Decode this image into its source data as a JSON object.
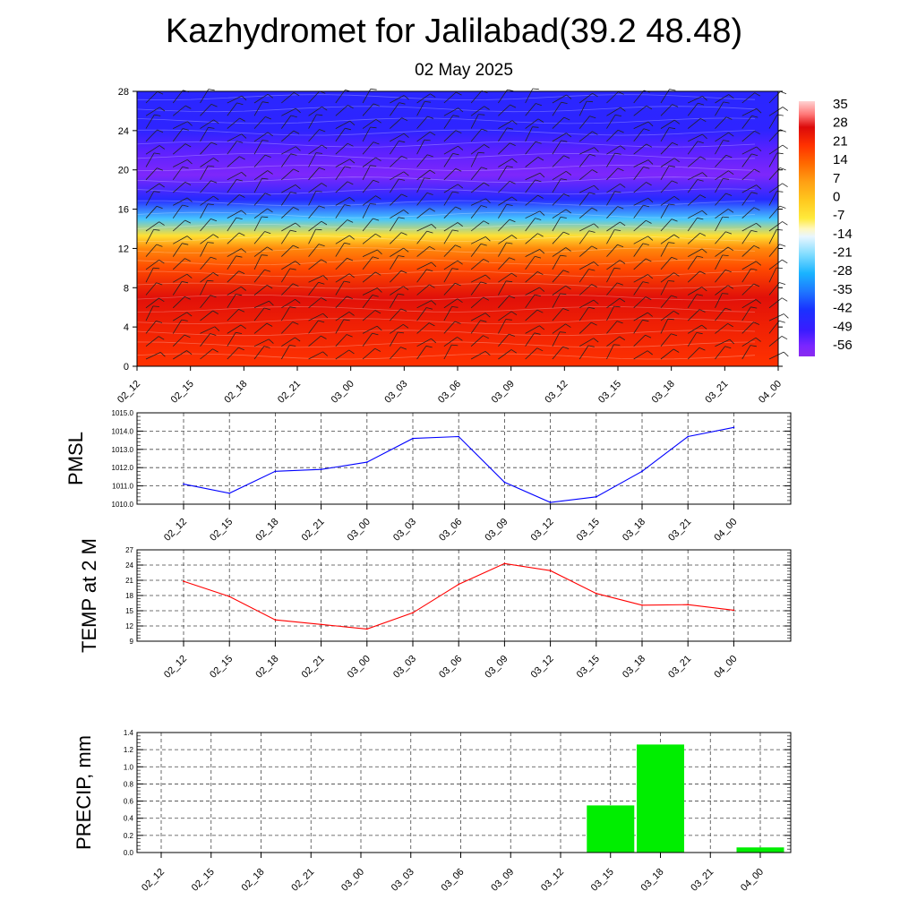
{
  "title": "Kazhydromet for Jalilabad(39.2 48.48)",
  "subtitle": "02 May 2025",
  "colors": {
    "pmsl_line": "#0000ff",
    "temp_line": "#ff0000",
    "precip_bar": "#00ee00"
  },
  "chart_data": [
    {
      "type": "heatmap",
      "name": "vertical-temperature-wind",
      "x": [
        "02_12",
        "02_15",
        "02_18",
        "02_21",
        "03_00",
        "03_03",
        "03_06",
        "03_09",
        "03_12",
        "03_15",
        "03_18",
        "03_21",
        "04_00"
      ],
      "y_ticks": [
        0,
        4,
        8,
        12,
        16,
        20,
        24,
        28
      ],
      "ylim": [
        0,
        28
      ],
      "colorbar_ticks": [
        "35",
        "28",
        "21",
        "14",
        "7",
        "0",
        "-7",
        "-14",
        "-21",
        "-28",
        "-35",
        "-42",
        "-49",
        "-56"
      ],
      "colorbar_range": [
        -60,
        38
      ],
      "temperature_profile": [
        {
          "h": 0,
          "t": 21
        },
        {
          "h": 4,
          "t": 24
        },
        {
          "h": 7,
          "t": 27
        },
        {
          "h": 10,
          "t": 18
        },
        {
          "h": 12,
          "t": 10
        },
        {
          "h": 13.3,
          "t": -5
        },
        {
          "h": 15,
          "t": -25
        },
        {
          "h": 17,
          "t": -45
        },
        {
          "h": 19.5,
          "t": -57
        },
        {
          "h": 22,
          "t": -53
        },
        {
          "h": 24,
          "t": -47
        },
        {
          "h": 28,
          "t": -46
        }
      ]
    },
    {
      "type": "line",
      "name": "pmsl",
      "ylabel": "PMSL",
      "x": [
        "02_12",
        "02_15",
        "02_18",
        "02_21",
        "03_00",
        "03_03",
        "03_06",
        "03_09",
        "03_12",
        "03_15",
        "03_18",
        "03_21",
        "04_00"
      ],
      "values": [
        1011.1,
        1010.6,
        1011.8,
        1011.9,
        1012.3,
        1013.6,
        1013.7,
        1011.2,
        1010.1,
        1010.4,
        1011.8,
        1013.7,
        1014.2
      ],
      "ylim": [
        1010,
        1015
      ],
      "y_ticks": [
        "1010.0",
        "1011.0",
        "1012.0",
        "1013.0",
        "1014.0",
        "1015.0"
      ]
    },
    {
      "type": "line",
      "name": "temp-2m",
      "ylabel": "TEMP at 2 M",
      "x": [
        "02_12",
        "02_15",
        "02_18",
        "02_21",
        "03_00",
        "03_03",
        "03_06",
        "03_09",
        "03_12",
        "03_15",
        "03_18",
        "03_21",
        "04_00"
      ],
      "values": [
        20.8,
        17.8,
        13.2,
        12.3,
        11.4,
        14.6,
        20.2,
        24.3,
        22.9,
        18.4,
        16.1,
        16.2,
        15.1
      ],
      "ylim": [
        9,
        27
      ],
      "y_ticks": [
        "9",
        "12",
        "15",
        "18",
        "21",
        "24",
        "27"
      ]
    },
    {
      "type": "bar",
      "name": "precip",
      "ylabel": "PRECIP, mm",
      "categories": [
        "02_12",
        "02_15",
        "02_18",
        "02_21",
        "03_00",
        "03_03",
        "03_06",
        "03_09",
        "03_12",
        "03_15",
        "03_18",
        "03_21",
        "04_00"
      ],
      "values": [
        0,
        0,
        0,
        0,
        0,
        0,
        0,
        0,
        0,
        0.55,
        1.26,
        0,
        0.06
      ],
      "ylim": [
        0,
        1.4
      ],
      "y_ticks": [
        "0.0",
        "0.2",
        "0.4",
        "0.6",
        "0.8",
        "1.0",
        "1.2",
        "1.4"
      ]
    }
  ]
}
